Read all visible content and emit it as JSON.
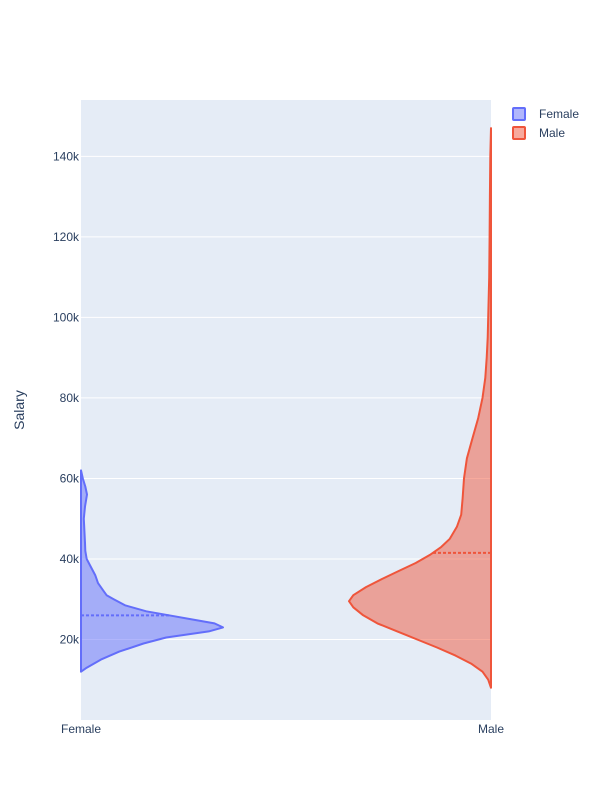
{
  "chart_data": {
    "type": "violin",
    "title": "",
    "xlabel": "",
    "ylabel": "Salary",
    "categories": [
      "Female",
      "Male"
    ],
    "ylim": [
      0,
      154000
    ],
    "y_ticks": [
      {
        "value": 20000,
        "label": "20k"
      },
      {
        "value": 40000,
        "label": "40k"
      },
      {
        "value": 60000,
        "label": "60k"
      },
      {
        "value": 80000,
        "label": "80k"
      },
      {
        "value": 100000,
        "label": "100k"
      },
      {
        "value": 120000,
        "label": "120k"
      },
      {
        "value": 140000,
        "label": "140k"
      }
    ],
    "grid": true,
    "legend_position": "top-right",
    "series": [
      {
        "name": "Female",
        "category": "Female",
        "side": "positive",
        "color": "#636efa",
        "range": [
          12000,
          62000
        ],
        "median": 26000,
        "density": [
          [
            12000,
            0.0
          ],
          [
            13000,
            0.04
          ],
          [
            15000,
            0.14
          ],
          [
            17000,
            0.27
          ],
          [
            19000,
            0.44
          ],
          [
            20500,
            0.6
          ],
          [
            22000,
            0.9
          ],
          [
            23000,
            1.0
          ],
          [
            24000,
            0.94
          ],
          [
            25000,
            0.78
          ],
          [
            26000,
            0.62
          ],
          [
            27000,
            0.46
          ],
          [
            28500,
            0.31
          ],
          [
            30000,
            0.23
          ],
          [
            31000,
            0.18
          ],
          [
            32000,
            0.16
          ],
          [
            34000,
            0.12
          ],
          [
            36000,
            0.1
          ],
          [
            38000,
            0.07
          ],
          [
            40000,
            0.04
          ],
          [
            42000,
            0.03
          ],
          [
            44000,
            0.028
          ],
          [
            47000,
            0.024
          ],
          [
            50000,
            0.02
          ],
          [
            53000,
            0.028
          ],
          [
            56000,
            0.042
          ],
          [
            58000,
            0.03
          ],
          [
            60000,
            0.013
          ],
          [
            62000,
            0.0
          ]
        ]
      },
      {
        "name": "Male",
        "category": "Male",
        "side": "negative",
        "color": "#ef553b",
        "range": [
          8000,
          147000
        ],
        "median": 41500,
        "density": [
          [
            8000,
            0.0
          ],
          [
            10000,
            0.02
          ],
          [
            12000,
            0.06
          ],
          [
            14000,
            0.14
          ],
          [
            16000,
            0.25
          ],
          [
            18000,
            0.38
          ],
          [
            20000,
            0.52
          ],
          [
            22000,
            0.66
          ],
          [
            24000,
            0.8
          ],
          [
            26000,
            0.9
          ],
          [
            28000,
            0.97
          ],
          [
            29500,
            1.0
          ],
          [
            31000,
            0.97
          ],
          [
            33000,
            0.88
          ],
          [
            35000,
            0.77
          ],
          [
            37000,
            0.65
          ],
          [
            39000,
            0.53
          ],
          [
            41000,
            0.43
          ],
          [
            43000,
            0.35
          ],
          [
            45000,
            0.29
          ],
          [
            48000,
            0.24
          ],
          [
            51000,
            0.21
          ],
          [
            55000,
            0.2
          ],
          [
            60000,
            0.19
          ],
          [
            65000,
            0.17
          ],
          [
            70000,
            0.13
          ],
          [
            75000,
            0.09
          ],
          [
            80000,
            0.06
          ],
          [
            85000,
            0.04
          ],
          [
            90000,
            0.03
          ],
          [
            95000,
            0.023
          ],
          [
            100000,
            0.02
          ],
          [
            105000,
            0.016
          ],
          [
            110000,
            0.013
          ],
          [
            120000,
            0.01
          ],
          [
            130000,
            0.008
          ],
          [
            140000,
            0.005
          ],
          [
            147000,
            0.0
          ]
        ]
      }
    ]
  }
}
